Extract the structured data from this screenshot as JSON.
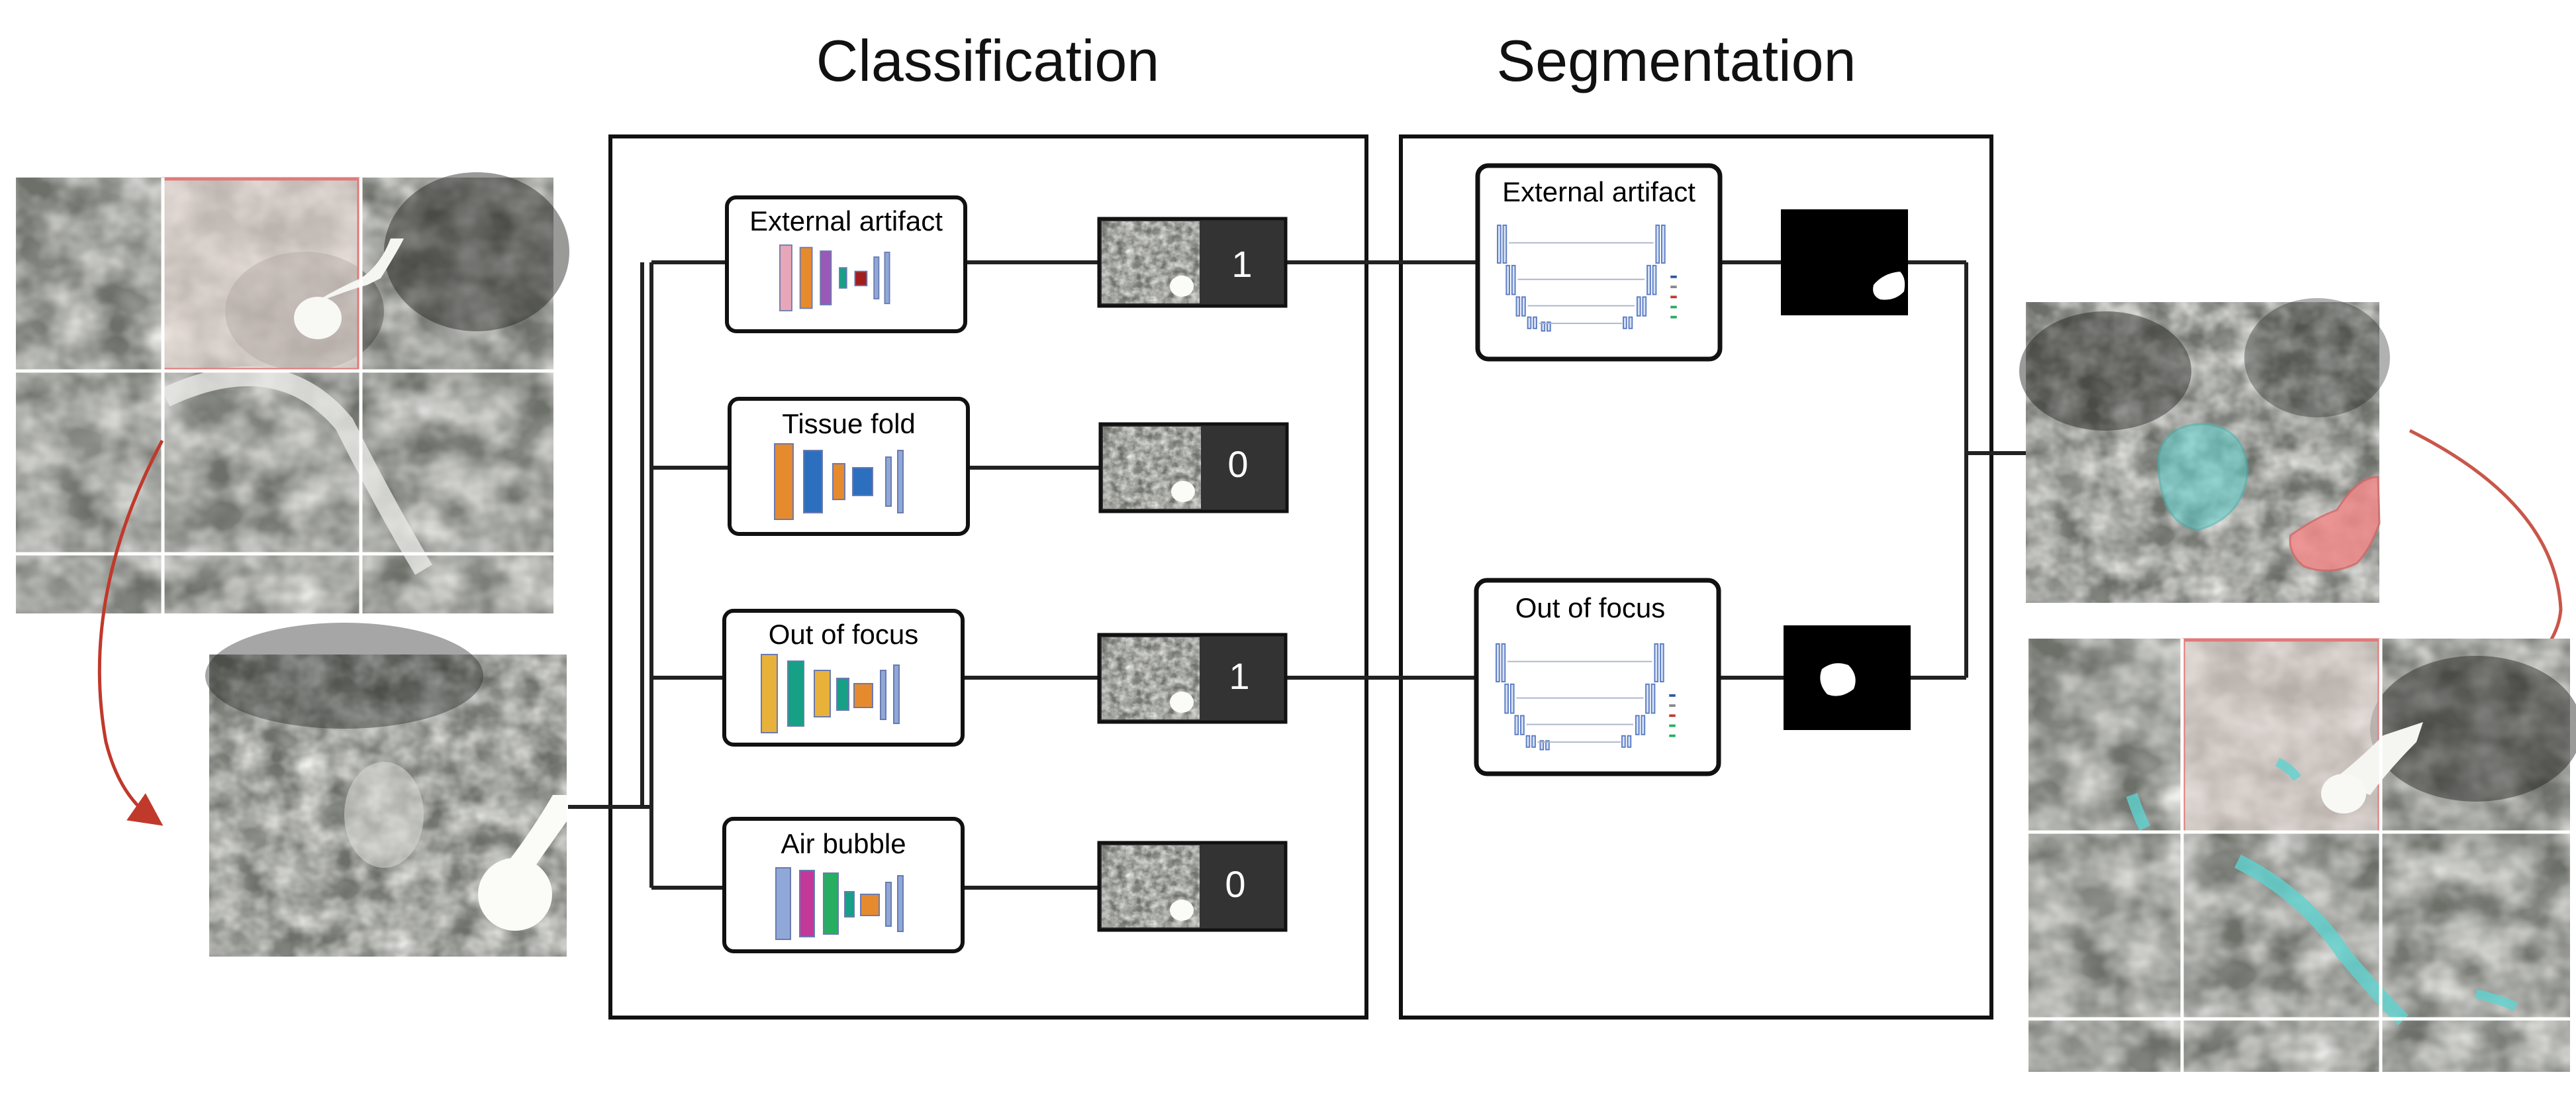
{
  "headers": {
    "classification": "Classification",
    "segmentation": "Segmentation"
  },
  "classifiers": [
    {
      "label": "External artifact",
      "score": "1"
    },
    {
      "label": "Tissue fold",
      "score": "0"
    },
    {
      "label": "Out of focus",
      "score": "1"
    },
    {
      "label": "Air bubble",
      "score": "0"
    }
  ],
  "segmenters": [
    {
      "label": "External artifact"
    },
    {
      "label": "Out of focus"
    }
  ],
  "colors": {
    "line": "#222222",
    "highlight_box": "#e07a7a",
    "arrow": "#c0392b",
    "tissue_dark": "#3c3f3a",
    "tissue_light": "#bfc1bc",
    "score_bg": "#333333",
    "focus_overlay": "#5fd3cf",
    "artifact_overlay": "#f08a8a",
    "model_layers": [
      "#e8a7b8",
      "#e68a2e",
      "#9b59b6",
      "#16a085",
      "#a31d1d",
      "#8fa8d8",
      "#2c6fbf",
      "#e8b23a",
      "#27ae60",
      "#c2399a"
    ]
  },
  "icons": {
    "model": "cnn-architecture-icon",
    "unet": "unet-architecture-icon",
    "arrow": "curved-arrow-icon"
  }
}
